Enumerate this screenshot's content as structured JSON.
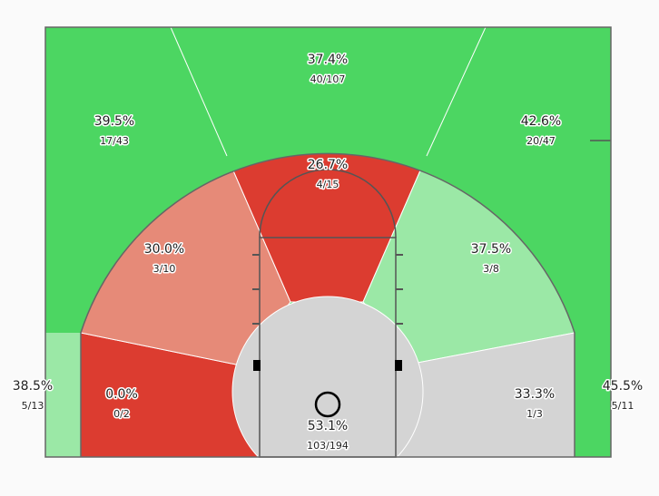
{
  "zones": [
    {
      "pct": "37.4%",
      "shots": "40/107"
    },
    {
      "pct": "39.5%",
      "shots": "17/43"
    },
    {
      "pct": "42.6%",
      "shots": "20/47"
    },
    {
      "pct": "26.7%",
      "shots": "4/15"
    },
    {
      "pct": "30.0%",
      "shots": "3/10"
    },
    {
      "pct": "37.5%",
      "shots": "3/8"
    },
    {
      "pct": "0.0%",
      "shots": "0/2"
    },
    {
      "pct": "33.3%",
      "shots": "1/3"
    },
    {
      "pct": "53.1%",
      "shots": "103/194"
    },
    {
      "pct": "38.5%",
      "shots": "5/13"
    },
    {
      "pct": "45.5%",
      "shots": "5/11"
    }
  ]
}
